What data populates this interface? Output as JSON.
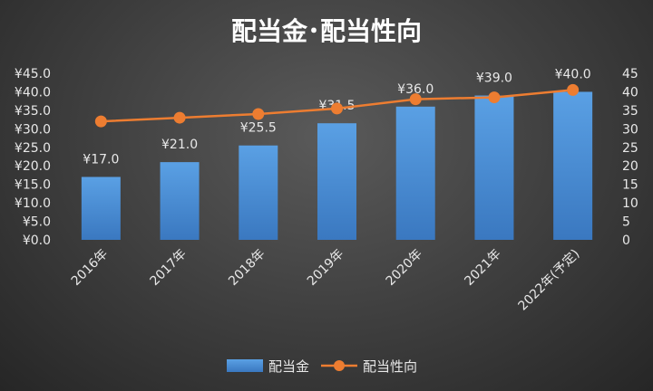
{
  "chart_data": {
    "type": "bar",
    "title": "配当金･配当性向",
    "categories": [
      "2016年",
      "2017年",
      "2018年",
      "2019年",
      "2020年",
      "2021年",
      "2022年(予定)"
    ],
    "series": [
      {
        "name": "配当金",
        "type": "bar",
        "axis": "left",
        "values": [
          17.0,
          21.0,
          25.5,
          31.5,
          36.0,
          39.0,
          40.0
        ],
        "data_labels": [
          "¥17.0",
          "¥21.0",
          "¥25.5",
          "¥31.5",
          "¥36.0",
          "¥39.0",
          "¥40.0"
        ],
        "color": "#4a8fd6"
      },
      {
        "name": "配当性向",
        "type": "line",
        "axis": "right",
        "values": [
          32,
          33,
          34,
          35.5,
          38,
          38.5,
          40.5
        ],
        "color": "#ed7d31"
      }
    ],
    "y_left": {
      "min": 0,
      "max": 45,
      "step": 5,
      "tick_labels": [
        "¥0.0",
        "¥5.0",
        "¥10.0",
        "¥15.0",
        "¥20.0",
        "¥25.0",
        "¥30.0",
        "¥35.0",
        "¥40.0",
        "¥45.0"
      ]
    },
    "y_right": {
      "min": 0,
      "max": 45,
      "step": 5,
      "tick_labels": [
        "0",
        "5",
        "10",
        "15",
        "20",
        "25",
        "30",
        "35",
        "40",
        "45"
      ]
    },
    "grid": false,
    "legend_position": "bottom"
  }
}
